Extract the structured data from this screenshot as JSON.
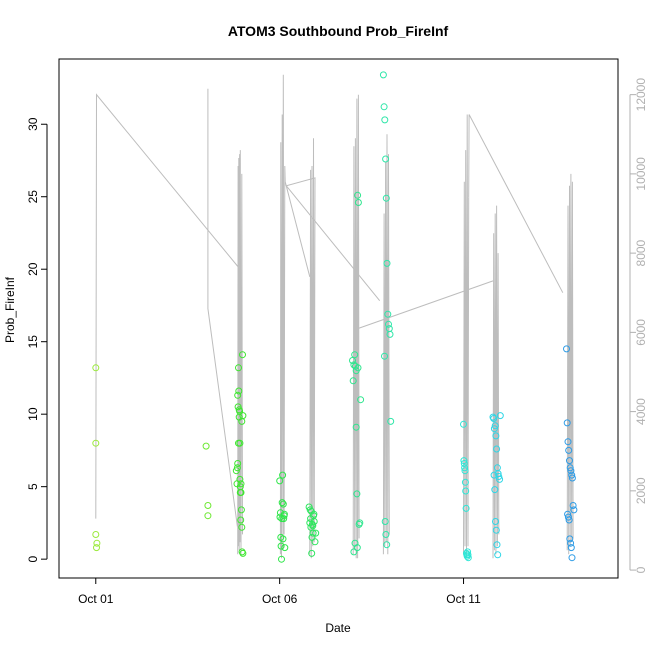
{
  "chart_data": {
    "type": "scatter",
    "title": "ATOM3 Southbound Prob_FireInf",
    "xlabel": "Date",
    "ylabel": "Prob_FireInf",
    "x_ticks": [
      {
        "value": 1.0,
        "label": "Oct 01"
      },
      {
        "value": 6.0,
        "label": "Oct 06"
      },
      {
        "value": 11.0,
        "label": "Oct 11"
      }
    ],
    "xlim": [
      0.0,
      15.2
    ],
    "ylim": [
      -1.3,
      34.5
    ],
    "y_ticks": [
      0,
      5,
      10,
      15,
      20,
      25,
      30
    ],
    "y2lim": [
      -200,
      12900
    ],
    "y2_ticks": [
      0,
      2000,
      4000,
      6000,
      8000,
      10000,
      12000
    ],
    "secondary_series": {
      "description_axis": "right",
      "color": "#bdbdbd",
      "segments": [
        [
          [
            1.0,
            1300
          ],
          [
            1.02,
            12000
          ],
          [
            4.92,
            7600
          ]
        ],
        [
          [
            4.05,
            12150
          ],
          [
            4.05,
            6600
          ],
          [
            4.85,
            1100
          ]
        ],
        [
          [
            4.86,
            400
          ],
          [
            4.87,
            10200
          ],
          [
            4.88,
            600
          ],
          [
            4.89,
            10400
          ],
          [
            4.9,
            500
          ],
          [
            4.91,
            10500
          ],
          [
            4.92,
            700
          ],
          [
            4.93,
            10600
          ],
          [
            4.95,
            400
          ],
          [
            4.97,
            10000
          ],
          [
            4.99,
            900
          ]
        ],
        [
          [
            6.02,
            400
          ],
          [
            6.03,
            10800
          ],
          [
            6.05,
            300
          ],
          [
            6.07,
            11500
          ],
          [
            6.09,
            500
          ],
          [
            6.1,
            12500
          ],
          [
            6.12,
            900
          ],
          [
            6.14,
            10200
          ],
          [
            6.15,
            9800
          ],
          [
            6.82,
            7400
          ]
        ],
        [
          [
            6.82,
            400
          ],
          [
            6.84,
            10100
          ],
          [
            6.86,
            300
          ],
          [
            6.88,
            10200
          ],
          [
            6.9,
            600
          ],
          [
            6.92,
            10900
          ],
          [
            6.94,
            700
          ],
          [
            6.96,
            9900
          ],
          [
            6.18,
            9700
          ],
          [
            8.72,
            6800
          ]
        ],
        [
          [
            8.0,
            400
          ],
          [
            8.02,
            10700
          ],
          [
            8.04,
            500
          ],
          [
            8.06,
            10900
          ],
          [
            8.08,
            300
          ],
          [
            8.1,
            11900
          ],
          [
            8.12,
            600
          ],
          [
            8.14,
            12000
          ],
          [
            8.16,
            800
          ]
        ],
        [
          [
            8.12,
            300
          ],
          [
            8.14,
            6100
          ],
          [
            11.8,
            7300
          ]
        ],
        [
          [
            8.82,
            400
          ],
          [
            8.84,
            9000
          ],
          [
            8.86,
            600
          ],
          [
            8.88,
            10300
          ],
          [
            8.9,
            700
          ],
          [
            8.92,
            11000
          ],
          [
            8.94,
            400
          ],
          [
            8.96,
            10500
          ],
          [
            8.98,
            900
          ]
        ],
        [
          [
            11.0,
            400
          ],
          [
            11.02,
            9800
          ],
          [
            11.04,
            600
          ],
          [
            11.06,
            10600
          ],
          [
            11.08,
            300
          ],
          [
            11.1,
            11500
          ],
          [
            11.12,
            600
          ],
          [
            11.14,
            9400
          ]
        ],
        [
          [
            11.14,
            9400
          ],
          [
            11.15,
            11500
          ],
          [
            13.7,
            7000
          ]
        ],
        [
          [
            11.8,
            300
          ],
          [
            11.82,
            8500
          ],
          [
            11.84,
            500
          ],
          [
            11.86,
            9000
          ],
          [
            11.88,
            400
          ],
          [
            11.9,
            9200
          ],
          [
            11.92,
            600
          ],
          [
            11.94,
            8000
          ],
          [
            11.96,
            900
          ]
        ],
        [
          [
            13.82,
            500
          ],
          [
            13.84,
            9200
          ],
          [
            13.86,
            400
          ],
          [
            13.88,
            9700
          ],
          [
            13.9,
            600
          ],
          [
            13.92,
            10000
          ],
          [
            13.94,
            700
          ],
          [
            13.96,
            9800
          ],
          [
            13.98,
            800
          ]
        ]
      ]
    },
    "series": [
      {
        "color": "#9bea3c",
        "x": [
          1.0,
          1.0,
          1.0,
          1.02,
          1.03
        ],
        "y": [
          13.2,
          8.0,
          1.7,
          0.8,
          1.1
        ]
      },
      {
        "color": "#6de832",
        "x": [
          4.0,
          4.05,
          4.05
        ],
        "y": [
          7.8,
          3.7,
          3.0
        ]
      },
      {
        "color": "#3ee630",
        "x": [
          4.82,
          4.84,
          4.85,
          4.86,
          4.87,
          4.88,
          4.89,
          4.9,
          4.91,
          4.92,
          4.93,
          4.93,
          4.94,
          4.95,
          4.96,
          4.97,
          4.98,
          4.99,
          5.0,
          5.0,
          4.86,
          4.88,
          4.9,
          4.92,
          4.95,
          4.97
        ],
        "y": [
          6.1,
          5.2,
          6.3,
          11.3,
          10.5,
          8.0,
          11.6,
          9.8,
          10.2,
          5.5,
          4.6,
          5.0,
          2.7,
          4.6,
          3.4,
          2.2,
          0.5,
          14.1,
          9.9,
          0.4,
          6.6,
          13.2,
          10.3,
          8.0,
          5.2,
          9.5
        ]
      },
      {
        "color": "#2fe64a",
        "x": [
          6.0,
          6.01,
          6.02,
          6.03,
          6.04,
          6.05,
          6.06,
          6.07,
          6.08,
          6.09,
          6.1,
          6.11,
          6.12,
          6.13,
          6.14
        ],
        "y": [
          5.4,
          2.9,
          3.2,
          1.5,
          0.9,
          0.0,
          2.8,
          3.9,
          5.8,
          1.4,
          3.8,
          2.8,
          3.0,
          3.1,
          0.8
        ]
      },
      {
        "color": "#2ee65e",
        "x": [
          6.8,
          6.82,
          6.84,
          6.86,
          6.88,
          6.9,
          6.92,
          6.94,
          6.96,
          6.98,
          6.83,
          6.85,
          6.87,
          6.89,
          6.91,
          6.93
        ],
        "y": [
          3.6,
          2.5,
          2.8,
          3.3,
          1.5,
          2.3,
          3.0,
          2.6,
          1.2,
          1.8,
          3.4,
          2.2,
          0.4,
          2.4,
          1.8,
          3.1
        ]
      },
      {
        "color": "#2ee68e",
        "x": [
          7.98,
          8.0,
          8.02,
          8.04,
          8.06,
          8.08,
          8.1,
          8.12,
          8.14,
          8.16,
          8.18,
          8.2,
          8.02,
          8.05,
          8.08,
          8.11,
          8.13
        ],
        "y": [
          13.7,
          12.3,
          13.4,
          14.1,
          13.3,
          9.1,
          4.5,
          25.1,
          24.6,
          2.4,
          2.5,
          11.0,
          0.5,
          1.1,
          13.0,
          0.8,
          13.2
        ]
      },
      {
        "color": "#2ee6a8",
        "x": [
          8.82,
          8.84,
          8.86,
          8.88,
          8.9,
          8.92,
          8.94,
          8.96,
          8.98,
          9.0,
          9.02,
          8.85,
          8.87,
          8.89,
          8.91
        ],
        "y": [
          33.4,
          31.2,
          30.3,
          27.6,
          24.9,
          20.4,
          16.9,
          16.2,
          15.9,
          15.5,
          9.5,
          14.0,
          2.6,
          1.7,
          1.0
        ]
      },
      {
        "color": "#2ee6d6",
        "x": [
          11.0,
          11.01,
          11.02,
          11.03,
          11.04,
          11.05,
          11.06,
          11.07,
          11.08,
          11.09,
          11.1,
          11.11,
          11.12,
          11.13
        ],
        "y": [
          9.3,
          6.8,
          6.6,
          6.3,
          6.1,
          5.3,
          4.7,
          3.5,
          0.4,
          0.3,
          0.2,
          0.5,
          0.3,
          0.1
        ]
      },
      {
        "color": "#2ed6e6",
        "x": [
          11.8,
          11.82,
          11.84,
          11.86,
          11.88,
          11.9,
          11.92,
          11.94,
          11.96,
          11.98,
          12.0,
          11.83,
          11.85,
          11.87,
          11.89,
          11.91,
          11.93
        ],
        "y": [
          9.8,
          9.7,
          9.0,
          9.2,
          8.5,
          7.6,
          6.3,
          5.9,
          5.7,
          5.5,
          9.9,
          5.8,
          4.8,
          2.6,
          2.0,
          1.0,
          0.3
        ]
      },
      {
        "color": "#2e9ce6",
        "x": [
          13.8,
          13.82,
          13.84,
          13.86,
          13.88,
          13.9,
          13.92,
          13.94,
          13.96,
          13.98,
          14.0,
          13.83,
          13.85,
          13.87,
          13.89,
          13.91,
          13.93,
          13.95
        ],
        "y": [
          14.5,
          9.4,
          8.1,
          7.5,
          6.8,
          6.3,
          6.1,
          5.8,
          5.6,
          3.7,
          3.4,
          3.1,
          2.9,
          2.7,
          1.4,
          1.1,
          0.8,
          0.1
        ]
      }
    ]
  }
}
